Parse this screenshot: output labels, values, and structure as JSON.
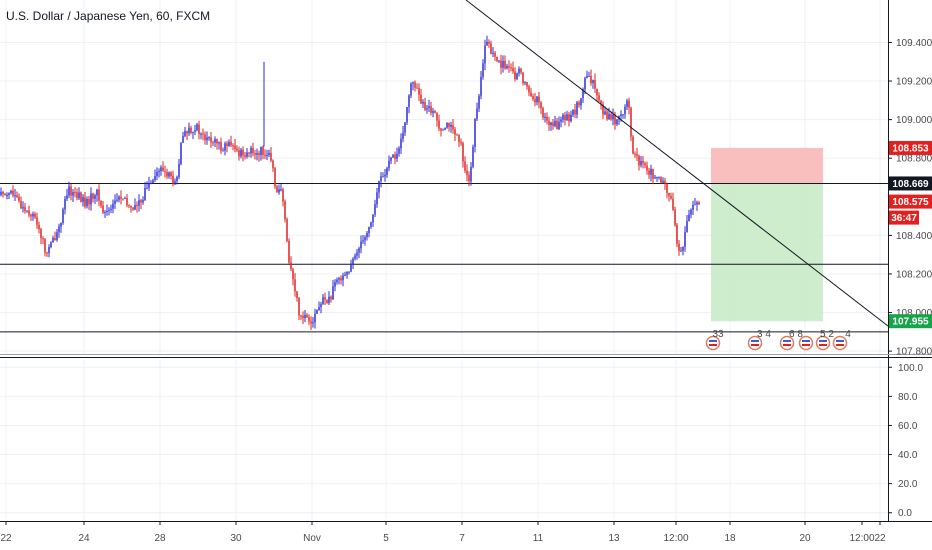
{
  "header": {
    "title": "U.S. Dollar / Japanese Yen, 60, FXCM"
  },
  "chart_data": [
    {
      "type": "candlestick",
      "title": "U.S. Dollar / Japanese Yen, 60, FXCM",
      "y_ticks": [
        "109.400",
        "109.200",
        "109.000",
        "108.800",
        "108.400",
        "108.200",
        "108.000",
        "107.800"
      ],
      "ylim": [
        107.785,
        109.62
      ],
      "x_ticks": [
        "22",
        "24",
        "28",
        "30",
        "Nov",
        "5",
        "7",
        "11",
        "13",
        "12:00",
        "18",
        "20",
        "22",
        "12:00"
      ],
      "colors": {
        "up": "#2b2bd6",
        "down": "#e0211f"
      },
      "series": [
        {
          "name": "USDJPY",
          "close_path": [
            [
              0,
              108.61
            ],
            [
              10,
              108.63
            ],
            [
              20,
              108.56
            ],
            [
              30,
              108.52
            ],
            [
              38,
              108.46
            ],
            [
              46,
              108.3
            ],
            [
              52,
              108.36
            ],
            [
              60,
              108.46
            ],
            [
              68,
              108.63
            ],
            [
              76,
              108.62
            ],
            [
              86,
              108.56
            ],
            [
              96,
              108.63
            ],
            [
              104,
              108.51
            ],
            [
              112,
              108.56
            ],
            [
              120,
              108.6
            ],
            [
              128,
              108.55
            ],
            [
              138,
              108.55
            ],
            [
              146,
              108.64
            ],
            [
              154,
              108.72
            ],
            [
              162,
              108.74
            ],
            [
              170,
              108.71
            ],
            [
              176,
              108.65
            ],
            [
              182,
              108.9
            ],
            [
              188,
              108.95
            ],
            [
              196,
              108.96
            ],
            [
              204,
              108.9
            ],
            [
              212,
              108.89
            ],
            [
              220,
              108.86
            ],
            [
              228,
              108.87
            ],
            [
              238,
              108.83
            ],
            [
              248,
              108.83
            ],
            [
              256,
              108.83
            ],
            [
              264,
              108.84
            ],
            [
              270,
              108.8
            ],
            [
              276,
              108.65
            ],
            [
              282,
              108.62
            ],
            [
              288,
              108.31
            ],
            [
              294,
              108.14
            ],
            [
              300,
              107.98
            ],
            [
              306,
              107.99
            ],
            [
              312,
              107.96
            ],
            [
              318,
              108.02
            ],
            [
              324,
              108.07
            ],
            [
              330,
              108.07
            ],
            [
              336,
              108.15
            ],
            [
              342,
              108.2
            ],
            [
              350,
              108.22
            ],
            [
              356,
              108.3
            ],
            [
              362,
              108.39
            ],
            [
              368,
              108.42
            ],
            [
              374,
              108.53
            ],
            [
              380,
              108.7
            ],
            [
              386,
              108.73
            ],
            [
              392,
              108.8
            ],
            [
              398,
              108.83
            ],
            [
              404,
              108.93
            ],
            [
              408,
              109.13
            ],
            [
              414,
              109.2
            ],
            [
              420,
              109.1
            ],
            [
              426,
              109.04
            ],
            [
              432,
              109.06
            ],
            [
              440,
              108.96
            ],
            [
              448,
              108.99
            ],
            [
              454,
              108.92
            ],
            [
              460,
              108.88
            ],
            [
              466,
              108.73
            ],
            [
              470,
              108.67
            ],
            [
              476,
              109.05
            ],
            [
              482,
              109.23
            ],
            [
              486,
              109.42
            ],
            [
              490,
              109.36
            ],
            [
              496,
              109.31
            ],
            [
              502,
              109.29
            ],
            [
              508,
              109.27
            ],
            [
              514,
              109.22
            ],
            [
              520,
              109.25
            ],
            [
              526,
              109.17
            ],
            [
              532,
              109.12
            ],
            [
              538,
              109.1
            ],
            [
              544,
              109.0
            ],
            [
              550,
              108.98
            ],
            [
              556,
              108.97
            ],
            [
              562,
              109.0
            ],
            [
              568,
              109.01
            ],
            [
              574,
              109.04
            ],
            [
              580,
              109.09
            ],
            [
              586,
              109.22
            ],
            [
              592,
              109.19
            ],
            [
              598,
              109.14
            ],
            [
              604,
              109.03
            ],
            [
              610,
              109.02
            ],
            [
              616,
              108.99
            ],
            [
              622,
              109.04
            ],
            [
              628,
              109.1
            ],
            [
              632,
              108.85
            ],
            [
              638,
              108.78
            ],
            [
              644,
              108.75
            ],
            [
              650,
              108.73
            ],
            [
              656,
              108.7
            ],
            [
              662,
              108.66
            ],
            [
              666,
              108.66
            ],
            [
              670,
              108.58
            ],
            [
              674,
              108.54
            ],
            [
              678,
              108.29
            ],
            [
              682,
              108.33
            ],
            [
              686,
              108.45
            ],
            [
              690,
              108.52
            ],
            [
              694,
              108.57
            ],
            [
              698,
              108.58
            ]
          ]
        }
      ],
      "horizontal_levels": [
        108.669,
        108.25,
        107.9
      ],
      "trendline": {
        "from": [
          "Oct 31-Nov 1 peak",
          109.5
        ],
        "slope": "descending"
      },
      "position": {
        "type": "long",
        "stop": 108.853,
        "entry": 108.669,
        "target": 107.955,
        "stop_color": "#f8b4b4",
        "target_color": "#c8ebc6"
      },
      "price_labels": [
        {
          "text": "108.853",
          "bg": "#e0211f"
        },
        {
          "text": "108.669",
          "bg": "#131722"
        },
        {
          "text": "108.575",
          "bg": "#e0211f"
        },
        {
          "text": "36:47",
          "bg": "#e0211f"
        },
        {
          "text": "107.955",
          "bg": "#16a34a"
        }
      ],
      "event_labels": [
        "33",
        "3 4",
        "6 8",
        "5 2",
        "4"
      ]
    },
    {
      "type": "line",
      "title": "",
      "y_ticks": [
        "100.0",
        "80.0",
        "60.0",
        "40.0",
        "20.0",
        "0.0"
      ],
      "ylim": [
        -5,
        105
      ],
      "values": []
    }
  ]
}
